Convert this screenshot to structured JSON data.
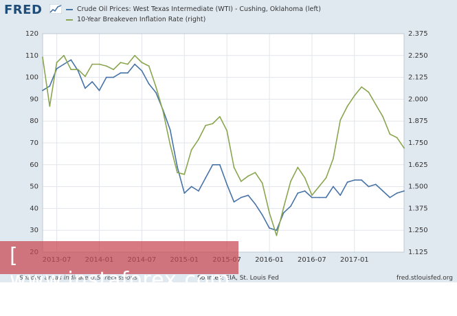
{
  "brand": {
    "logo": "FRED"
  },
  "legend": [
    {
      "label": "Crude Oil Prices: West Texas Intermediate (WTI) - Cushing, Oklahoma (left)",
      "color": "#4572a7"
    },
    {
      "label": "10-Year Breakeven Inflation Rate (right)",
      "color": "#89a54e"
    }
  ],
  "footer": {
    "recessions": "Shaded areas indicate U.S. recessions",
    "sources": "Sources: EIA, St. Louis Fed",
    "site": "fred.stlouisfed.org"
  },
  "watermark": {
    "text": "[ www.instaforex.com ]"
  },
  "chart_data": {
    "type": "line",
    "x_ticks": [
      "2013-07",
      "2014-01",
      "2014-07",
      "2015-01",
      "2015-07",
      "2016-01",
      "2016-07",
      "2017-01"
    ],
    "x_range": [
      "2013-05",
      "2017-08"
    ],
    "y_left": {
      "lim": [
        20,
        120
      ],
      "ticks": [
        20,
        30,
        40,
        50,
        60,
        70,
        80,
        90,
        100,
        110,
        120
      ]
    },
    "y_right": {
      "lim": [
        1.125,
        2.375
      ],
      "ticks": [
        "1.125",
        "1.250",
        "1.375",
        "1.500",
        "1.625",
        "1.750",
        "1.875",
        "2.000",
        "2.125",
        "2.250",
        "2.375"
      ]
    },
    "grid": true,
    "series": [
      {
        "name": "Crude Oil Prices: West Texas Intermediate (WTI) - Cushing, Oklahoma (left)",
        "axis": "left",
        "color": "#4572a7",
        "x": [
          "2013-05",
          "2013-06",
          "2013-07",
          "2013-08",
          "2013-09",
          "2013-10",
          "2013-11",
          "2013-12",
          "2014-01",
          "2014-02",
          "2014-03",
          "2014-04",
          "2014-05",
          "2014-06",
          "2014-07",
          "2014-08",
          "2014-09",
          "2014-10",
          "2014-11",
          "2014-12",
          "2015-01",
          "2015-02",
          "2015-03",
          "2015-04",
          "2015-05",
          "2015-06",
          "2015-07",
          "2015-08",
          "2015-09",
          "2015-10",
          "2015-11",
          "2015-12",
          "2016-01",
          "2016-02",
          "2016-03",
          "2016-04",
          "2016-05",
          "2016-06",
          "2016-07",
          "2016-08",
          "2016-09",
          "2016-10",
          "2016-11",
          "2016-12",
          "2017-01",
          "2017-02",
          "2017-03",
          "2017-04",
          "2017-05",
          "2017-06",
          "2017-07",
          "2017-08"
        ],
        "values": [
          94,
          96,
          104,
          106,
          108,
          103,
          95,
          98,
          94,
          100,
          100,
          102,
          102,
          106,
          103,
          97,
          93,
          85,
          76,
          59,
          47,
          50,
          48,
          54,
          60,
          60,
          51,
          43,
          45,
          46,
          42,
          37,
          31,
          30,
          38,
          41,
          47,
          48,
          45,
          45,
          45,
          50,
          46,
          52,
          53,
          53,
          50,
          51,
          48,
          45,
          47,
          48
        ]
      },
      {
        "name": "10-Year Breakeven Inflation Rate (right)",
        "axis": "right",
        "color": "#89a54e",
        "x": [
          "2013-05",
          "2013-06",
          "2013-07",
          "2013-08",
          "2013-09",
          "2013-10",
          "2013-11",
          "2013-12",
          "2014-01",
          "2014-02",
          "2014-03",
          "2014-04",
          "2014-05",
          "2014-06",
          "2014-07",
          "2014-08",
          "2014-09",
          "2014-10",
          "2014-11",
          "2014-12",
          "2015-01",
          "2015-02",
          "2015-03",
          "2015-04",
          "2015-05",
          "2015-06",
          "2015-07",
          "2015-08",
          "2015-09",
          "2015-10",
          "2015-11",
          "2015-12",
          "2016-01",
          "2016-02",
          "2016-03",
          "2016-04",
          "2016-05",
          "2016-06",
          "2016-07",
          "2016-08",
          "2016-09",
          "2016-10",
          "2016-11",
          "2016-12",
          "2017-01",
          "2017-02",
          "2017-03",
          "2017-04",
          "2017-05",
          "2017-06",
          "2017-07",
          "2017-08"
        ],
        "values": [
          2.24,
          1.96,
          2.21,
          2.25,
          2.17,
          2.17,
          2.13,
          2.2,
          2.2,
          2.19,
          2.17,
          2.21,
          2.2,
          2.25,
          2.21,
          2.19,
          2.07,
          1.93,
          1.74,
          1.58,
          1.57,
          1.71,
          1.77,
          1.85,
          1.86,
          1.9,
          1.82,
          1.61,
          1.53,
          1.56,
          1.58,
          1.52,
          1.35,
          1.22,
          1.38,
          1.53,
          1.61,
          1.55,
          1.45,
          1.5,
          1.55,
          1.66,
          1.88,
          1.96,
          2.02,
          2.07,
          2.04,
          1.97,
          1.9,
          1.8,
          1.78,
          1.72
        ]
      }
    ]
  }
}
